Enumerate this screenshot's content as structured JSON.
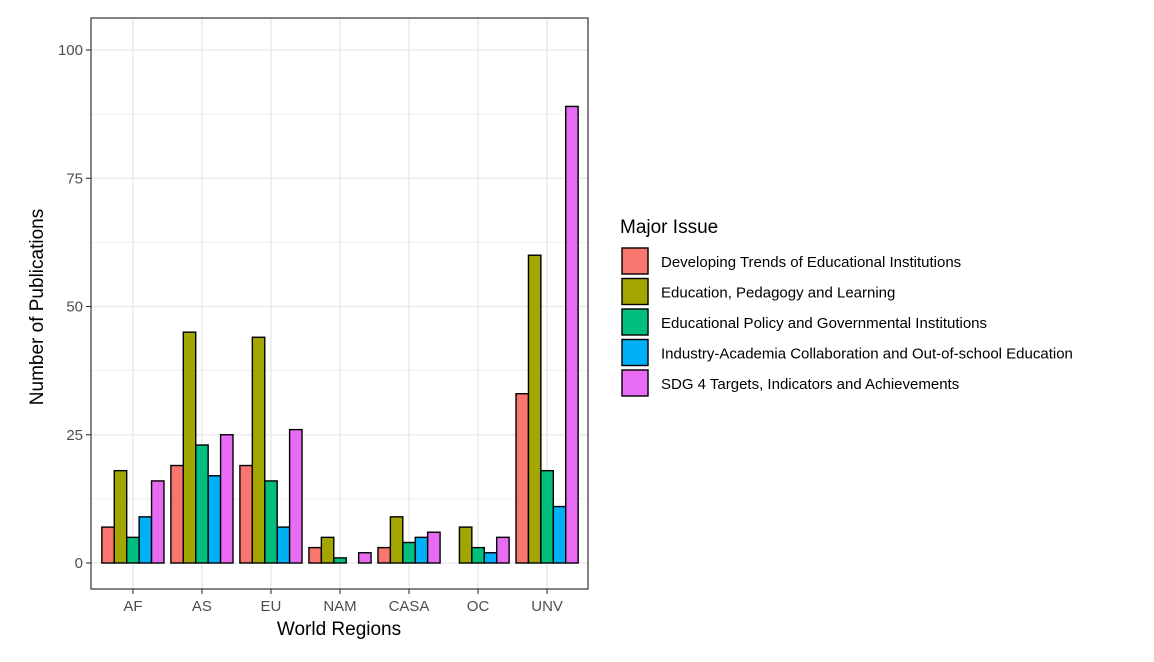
{
  "chart_data": {
    "type": "bar",
    "title": "",
    "xlabel": "World Regions",
    "ylabel": "Number of Publications",
    "categories": [
      "AF",
      "AS",
      "EU",
      "NAM",
      "CASA",
      "OC",
      "UNV"
    ],
    "yticks": [
      0,
      25,
      50,
      75,
      100
    ],
    "ylim": [
      0,
      105
    ],
    "grid": true,
    "legend": {
      "title": "Major Issue",
      "position": "right"
    },
    "series": [
      {
        "name": "Developing Trends of Educational Institutions",
        "color": "#F8766D",
        "values": [
          7,
          19,
          19,
          3,
          3,
          0,
          33
        ]
      },
      {
        "name": "Education, Pedagogy and Learning",
        "color": "#A3A500",
        "values": [
          18,
          45,
          44,
          5,
          9,
          7,
          60
        ]
      },
      {
        "name": "Educational Policy and Governmental Institutions",
        "color": "#00BF7D",
        "values": [
          5,
          23,
          16,
          1,
          4,
          3,
          18
        ]
      },
      {
        "name": "Industry-Academia Collaboration and Out-of-school Education",
        "color": "#00B0F6",
        "values": [
          9,
          17,
          7,
          0,
          5,
          2,
          11
        ]
      },
      {
        "name": "SDG 4 Targets, Indicators and Achievements",
        "color": "#E76BF3",
        "values": [
          16,
          25,
          26,
          2,
          6,
          5,
          89
        ]
      }
    ]
  }
}
